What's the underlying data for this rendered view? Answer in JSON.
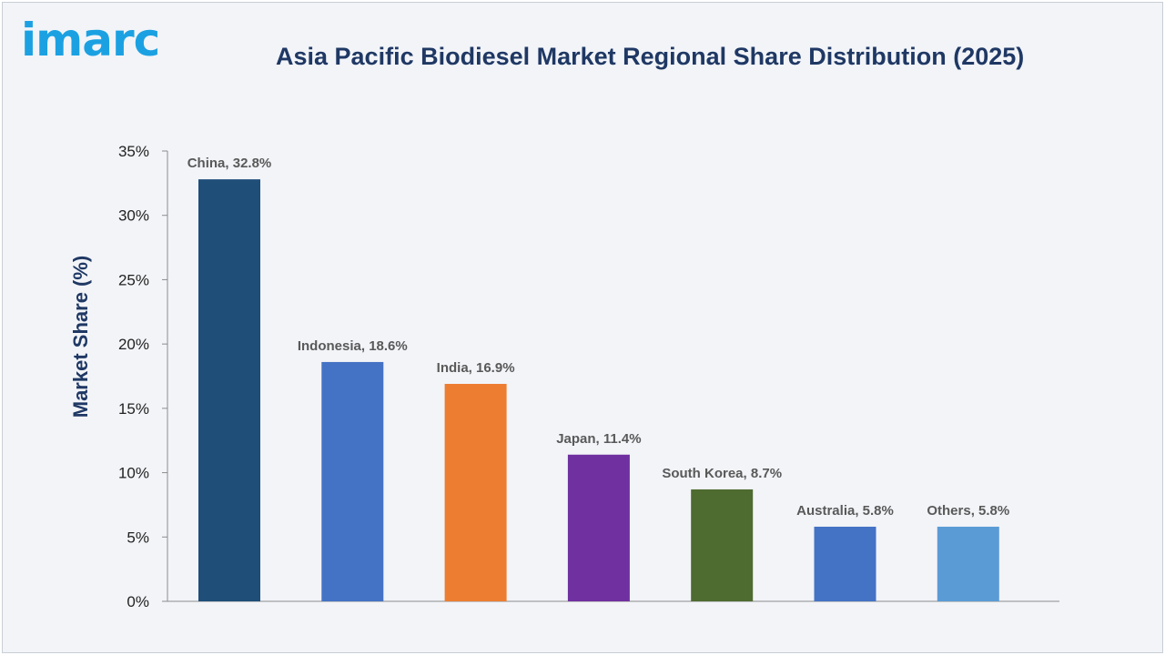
{
  "brand": {
    "logo_text": "imarc"
  },
  "chart_data": {
    "type": "bar",
    "title": "Asia Pacific Biodiesel Market Regional Share Distribution (2025)",
    "xlabel": "",
    "ylabel": "Market Share (%)",
    "ylim": [
      0,
      35
    ],
    "yticks": [
      0,
      5,
      10,
      15,
      20,
      25,
      30,
      35
    ],
    "ytick_format": "{v}%",
    "grid": false,
    "legend": "none",
    "categories": [
      "China",
      "Indonesia",
      "India",
      "Japan",
      "South Korea",
      "Australia",
      "Others"
    ],
    "values": [
      32.8,
      18.6,
      16.9,
      11.4,
      8.7,
      5.8,
      5.8
    ],
    "data_labels": [
      "China, 32.8%",
      "Indonesia, 18.6%",
      "India, 16.9%",
      "Japan, 11.4%",
      "South Korea, 8.7%",
      "Australia, 5.8%",
      "Others, 5.8%"
    ],
    "colors": [
      "#1f4e79",
      "#4472c4",
      "#ed7d31",
      "#7030a0",
      "#4e6b30",
      "#4472c4",
      "#5b9bd5"
    ]
  }
}
